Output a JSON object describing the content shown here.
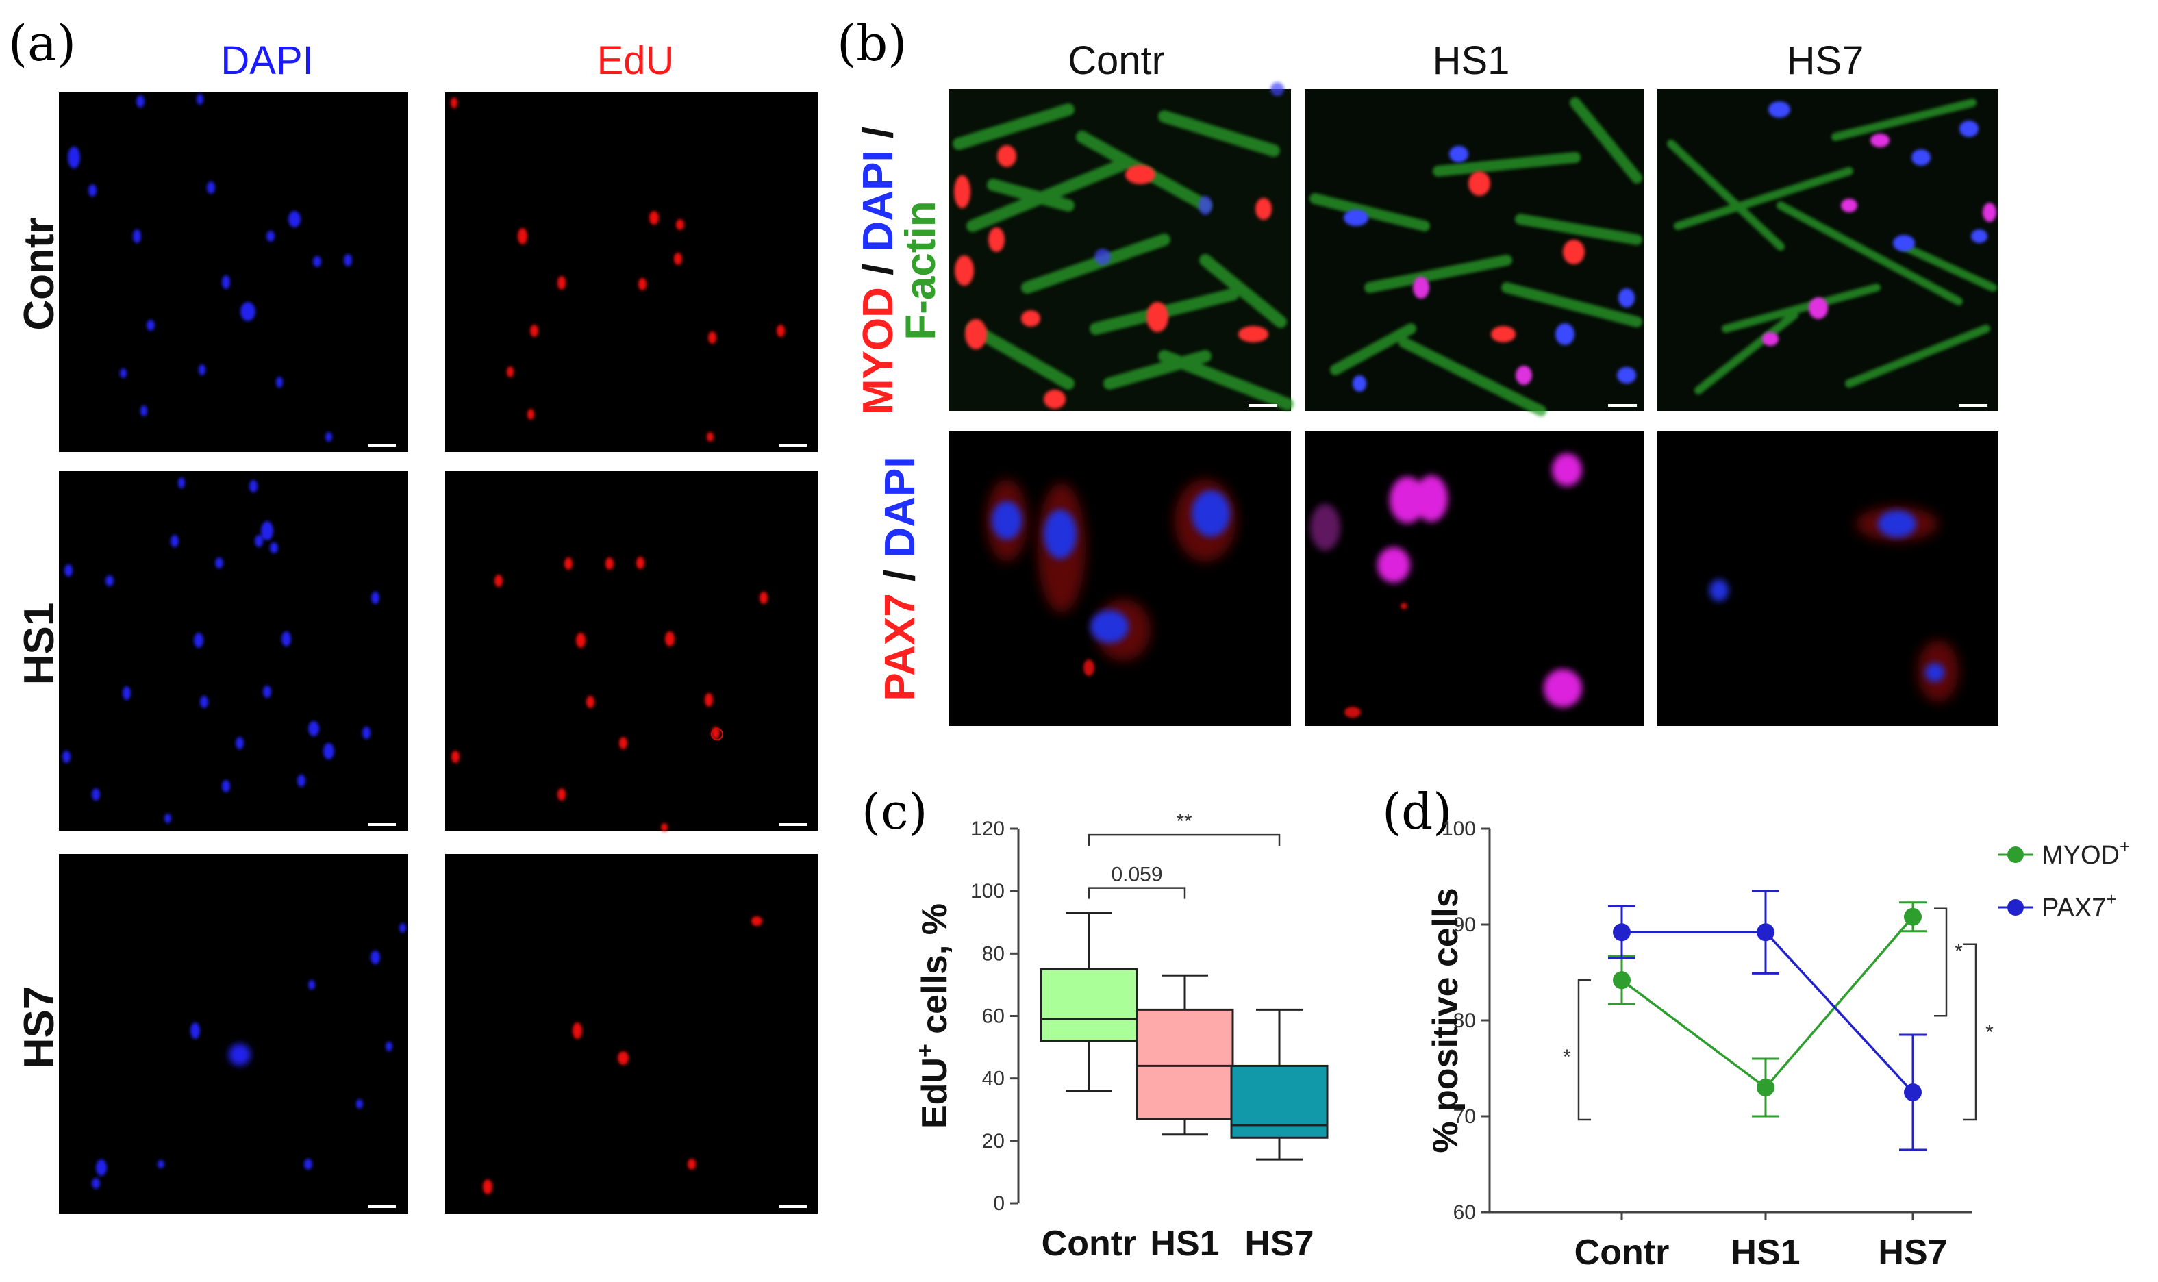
{
  "panel_labels": {
    "a": "(a)",
    "b": "(b)",
    "c": "(c)",
    "d": "(d)"
  },
  "panel_a": {
    "column_titles": [
      {
        "text": "DAPI",
        "color": "#1a1aff"
      },
      {
        "text": "EdU",
        "color": "#ff1a1a"
      }
    ],
    "row_titles": [
      "Contr",
      "HS1",
      "HS7"
    ]
  },
  "panel_b": {
    "column_titles": [
      "Contr",
      "HS1",
      "HS7"
    ],
    "row1_label": [
      {
        "text": "MYOD",
        "color": "#ff2020"
      },
      {
        "text": " / ",
        "color": "#111111"
      },
      {
        "text": "DAPI",
        "color": "#2030ff"
      },
      {
        "text": " / ",
        "color": "#111111"
      }
    ],
    "row1_label_line2": {
      "text": "F-actin",
      "color": "#33a02c"
    },
    "row2_label": [
      {
        "text": "PAX7",
        "color": "#ff2020"
      },
      {
        "text": " / ",
        "color": "#111111"
      },
      {
        "text": "DAPI",
        "color": "#2030ff"
      }
    ]
  },
  "chart_data": [
    {
      "type": "box",
      "panel": "c",
      "categories": [
        "Contr",
        "HS1",
        "HS7"
      ],
      "boxes": [
        {
          "min": 36,
          "q1": 52,
          "median": 59,
          "q3": 75,
          "max": 93,
          "color": "#aaff99"
        },
        {
          "min": 22,
          "q1": 27,
          "median": 44,
          "q3": 62,
          "max": 73,
          "color": "#ffaaaa"
        },
        {
          "min": 14,
          "q1": 21,
          "median": 25,
          "q3": 44,
          "max": 62,
          "color": "#1199aa"
        }
      ],
      "ylabel": "EdU",
      "ylabel_sup": "+",
      "ylabel_suffix": " cells, %",
      "ylim": [
        0,
        120
      ],
      "yticks": [
        0,
        20,
        40,
        60,
        80,
        100,
        120
      ],
      "annotations": [
        {
          "from": 0,
          "to": 1,
          "label": "0.059",
          "level": 101
        },
        {
          "from": 0,
          "to": 2,
          "label": "**",
          "level": 118
        }
      ]
    },
    {
      "type": "line",
      "panel": "d",
      "categories": [
        "Contr",
        "HS1",
        "HS7"
      ],
      "series": [
        {
          "name": "MYOD",
          "sup": "+",
          "color": "#2e9e2e",
          "values": [
            84.2,
            73.0,
            90.8
          ],
          "err": [
            2.5,
            3.0,
            1.5
          ]
        },
        {
          "name": "PAX7",
          "sup": "+",
          "color": "#2222cc",
          "values": [
            89.2,
            89.2,
            72.5
          ],
          "err": [
            2.7,
            4.3,
            6.0
          ]
        }
      ],
      "ylabel": "% positive cells",
      "ylim": [
        60,
        100
      ],
      "yticks": [
        60,
        70,
        80,
        90,
        100
      ],
      "legend_position": "top-right",
      "significance": [
        {
          "label": "*",
          "between": "Contr MYOD vs PAX7"
        },
        {
          "label": "*",
          "between": "HS7 MYOD vs PAX7"
        },
        {
          "label": "*",
          "between": "PAX7 Contr vs HS7"
        }
      ]
    }
  ]
}
